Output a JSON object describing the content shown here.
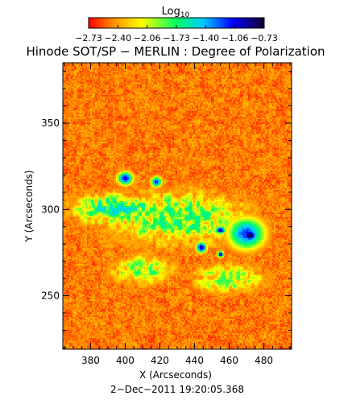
{
  "chart_data": {
    "type": "heatmap",
    "title": "Hinode SOT/SP − MERLIN : Degree of Polarization",
    "xlabel": "X (Arcseconds)",
    "ylabel": "Y (Arcseconds)",
    "timestamp": "2−Dec−2011 19:20:05.368",
    "xlim": [
      364,
      496
    ],
    "ylim": [
      219,
      385
    ],
    "x_ticks": [
      380,
      400,
      420,
      440,
      460,
      480
    ],
    "y_ticks": [
      250,
      300,
      350
    ],
    "colorbar": {
      "label_main": "Log",
      "label_sub": "10",
      "tick_labels": [
        "−2.73",
        "−2.40",
        "−2.06",
        "−1.73",
        "−1.40",
        "−1.06",
        "−0.73"
      ],
      "range": [
        -2.73,
        -0.73
      ],
      "colormap": [
        "#ff0000",
        "#ff8c00",
        "#ffff00",
        "#00ff60",
        "#00ccff",
        "#0000ff",
        "#160030"
      ]
    },
    "features": [
      {
        "kind": "sunspot_umbra",
        "x": 472,
        "y": 285,
        "rx": 6,
        "ry": 5,
        "value": -0.8
      },
      {
        "kind": "sunspot_penumbra",
        "x": 470,
        "y": 286,
        "rx": 14,
        "ry": 12,
        "value": -1.25
      },
      {
        "kind": "pore",
        "x": 455,
        "y": 288,
        "rx": 4,
        "ry": 3,
        "value": -0.95
      },
      {
        "kind": "pore",
        "x": 444,
        "y": 278,
        "rx": 4,
        "ry": 4,
        "value": -1.0
      },
      {
        "kind": "pore",
        "x": 455,
        "y": 274,
        "rx": 2.5,
        "ry": 2.5,
        "value": -1.05
      },
      {
        "kind": "plage",
        "x": 400,
        "y": 318,
        "rx": 6,
        "ry": 5,
        "value": -1.15
      },
      {
        "kind": "plage",
        "x": 418,
        "y": 316,
        "rx": 4,
        "ry": 4,
        "value": -1.2
      },
      {
        "kind": "network",
        "x": 430,
        "y": 295,
        "rx": 45,
        "ry": 18,
        "value": -1.9
      },
      {
        "kind": "network",
        "x": 395,
        "y": 300,
        "rx": 28,
        "ry": 10,
        "value": -1.75
      },
      {
        "kind": "network",
        "x": 410,
        "y": 265,
        "rx": 20,
        "ry": 10,
        "value": -2.0
      },
      {
        "kind": "network",
        "x": 460,
        "y": 260,
        "rx": 25,
        "ry": 10,
        "value": -2.05
      }
    ]
  }
}
